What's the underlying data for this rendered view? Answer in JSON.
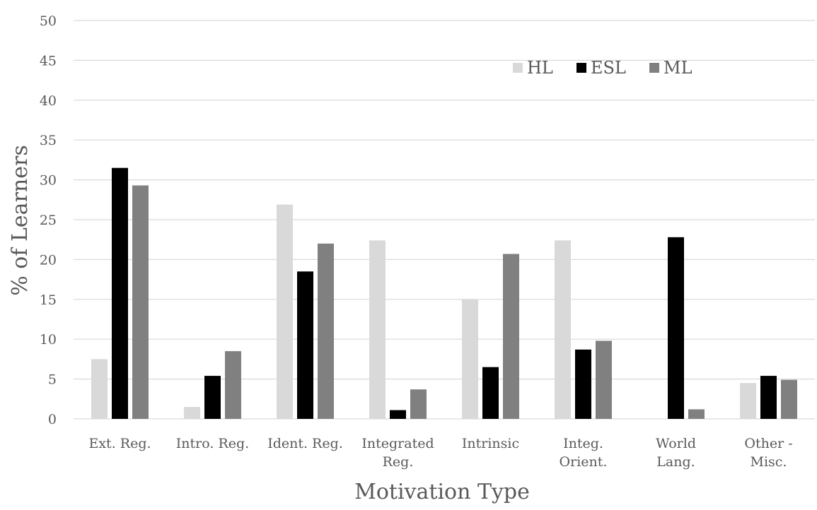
{
  "chart_data": {
    "type": "bar",
    "title": "",
    "xlabel": "Motivation Type",
    "ylabel": "% of Learners",
    "ylim": [
      0,
      50
    ],
    "yticks": [
      0,
      5,
      10,
      15,
      20,
      25,
      30,
      35,
      40,
      45,
      50
    ],
    "grid": true,
    "legend_position": "top-right",
    "categories": [
      [
        "Ext. Reg."
      ],
      [
        "Intro. Reg."
      ],
      [
        "Ident. Reg."
      ],
      [
        "Integrated",
        "Reg."
      ],
      [
        "Intrinsic"
      ],
      [
        "Integ.",
        "Orient."
      ],
      [
        "World",
        "Lang."
      ],
      [
        "Other -",
        "Misc."
      ]
    ],
    "series": [
      {
        "name": "HL",
        "color": "#d9d9d9",
        "values": [
          7.5,
          1.5,
          26.9,
          22.4,
          15.0,
          22.4,
          0,
          4.5
        ]
      },
      {
        "name": "ESL",
        "color": "#000000",
        "values": [
          31.5,
          5.4,
          18.5,
          1.1,
          6.5,
          8.7,
          22.8,
          5.4
        ]
      },
      {
        "name": "ML",
        "color": "#808080",
        "values": [
          29.3,
          8.5,
          22.0,
          3.7,
          20.7,
          9.8,
          1.2,
          4.9
        ]
      }
    ]
  }
}
